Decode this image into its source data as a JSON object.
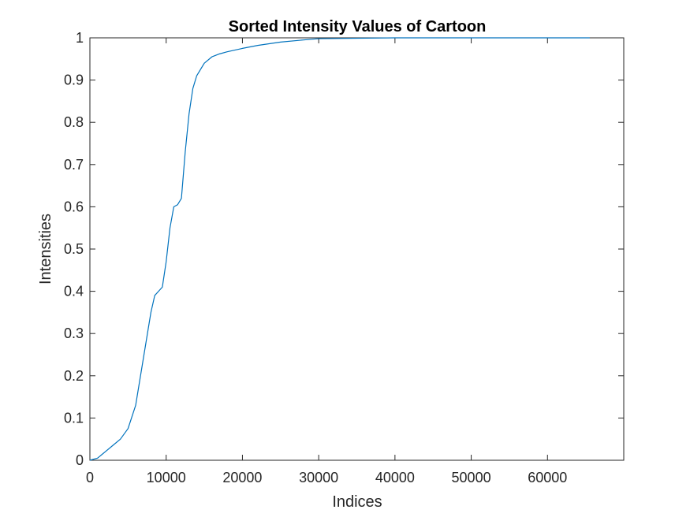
{
  "chart_data": {
    "type": "line",
    "title": "Sorted Intensity Values of Cartoon",
    "xlabel": "Indices",
    "ylabel": "Intensities",
    "xlim": [
      0,
      70000
    ],
    "ylim": [
      0,
      1
    ],
    "xticks": [
      0,
      10000,
      20000,
      30000,
      40000,
      50000,
      60000
    ],
    "xtick_labels": [
      "0",
      "10000",
      "20000",
      "30000",
      "40000",
      "50000",
      "60000"
    ],
    "yticks": [
      0,
      0.1,
      0.2,
      0.3,
      0.4,
      0.5,
      0.6,
      0.7,
      0.8,
      0.9,
      1
    ],
    "ytick_labels": [
      "0",
      "0.1",
      "0.2",
      "0.3",
      "0.4",
      "0.5",
      "0.6",
      "0.7",
      "0.8",
      "0.9",
      "1"
    ],
    "grid": false,
    "line_color": "#0072BD",
    "series": [
      {
        "x": [
          0,
          1000,
          2000,
          3000,
          4000,
          5000,
          6000,
          7000,
          8000,
          8500,
          9000,
          9500,
          10000,
          10500,
          11000,
          11500,
          12000,
          12500,
          13000,
          13500,
          14000,
          15000,
          16000,
          17000,
          18000,
          20000,
          22000,
          25000,
          28000,
          30000,
          40000,
          50000,
          60000,
          65536
        ],
        "y": [
          0,
          0.005,
          0.02,
          0.035,
          0.05,
          0.075,
          0.13,
          0.24,
          0.35,
          0.39,
          0.4,
          0.41,
          0.47,
          0.55,
          0.6,
          0.605,
          0.62,
          0.73,
          0.82,
          0.88,
          0.91,
          0.94,
          0.955,
          0.962,
          0.967,
          0.975,
          0.982,
          0.99,
          0.995,
          0.998,
          1.0,
          1.0,
          1.0,
          1.0
        ]
      }
    ]
  }
}
